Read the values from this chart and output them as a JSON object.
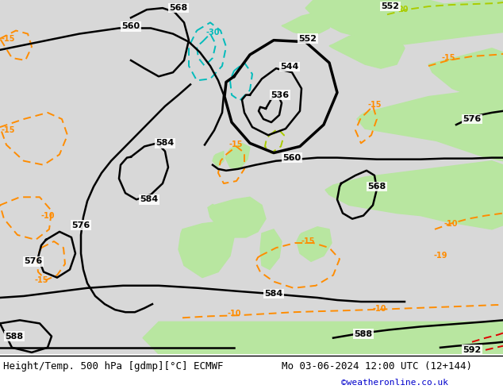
{
  "title_left": "Height/Temp. 500 hPa [gdmp][°C] ECMWF",
  "title_right": "Mo 03-06-2024 12:00 UTC (12+144)",
  "credit": "©weatheronline.co.uk",
  "figsize": [
    6.34,
    4.9
  ],
  "dpi": 100,
  "title_fontsize": 9,
  "credit_color": "#0000cc",
  "sea_color": "#d8d8d8",
  "land_green_color": "#b8e6a0",
  "land_gray_color": "#c8c8c8"
}
